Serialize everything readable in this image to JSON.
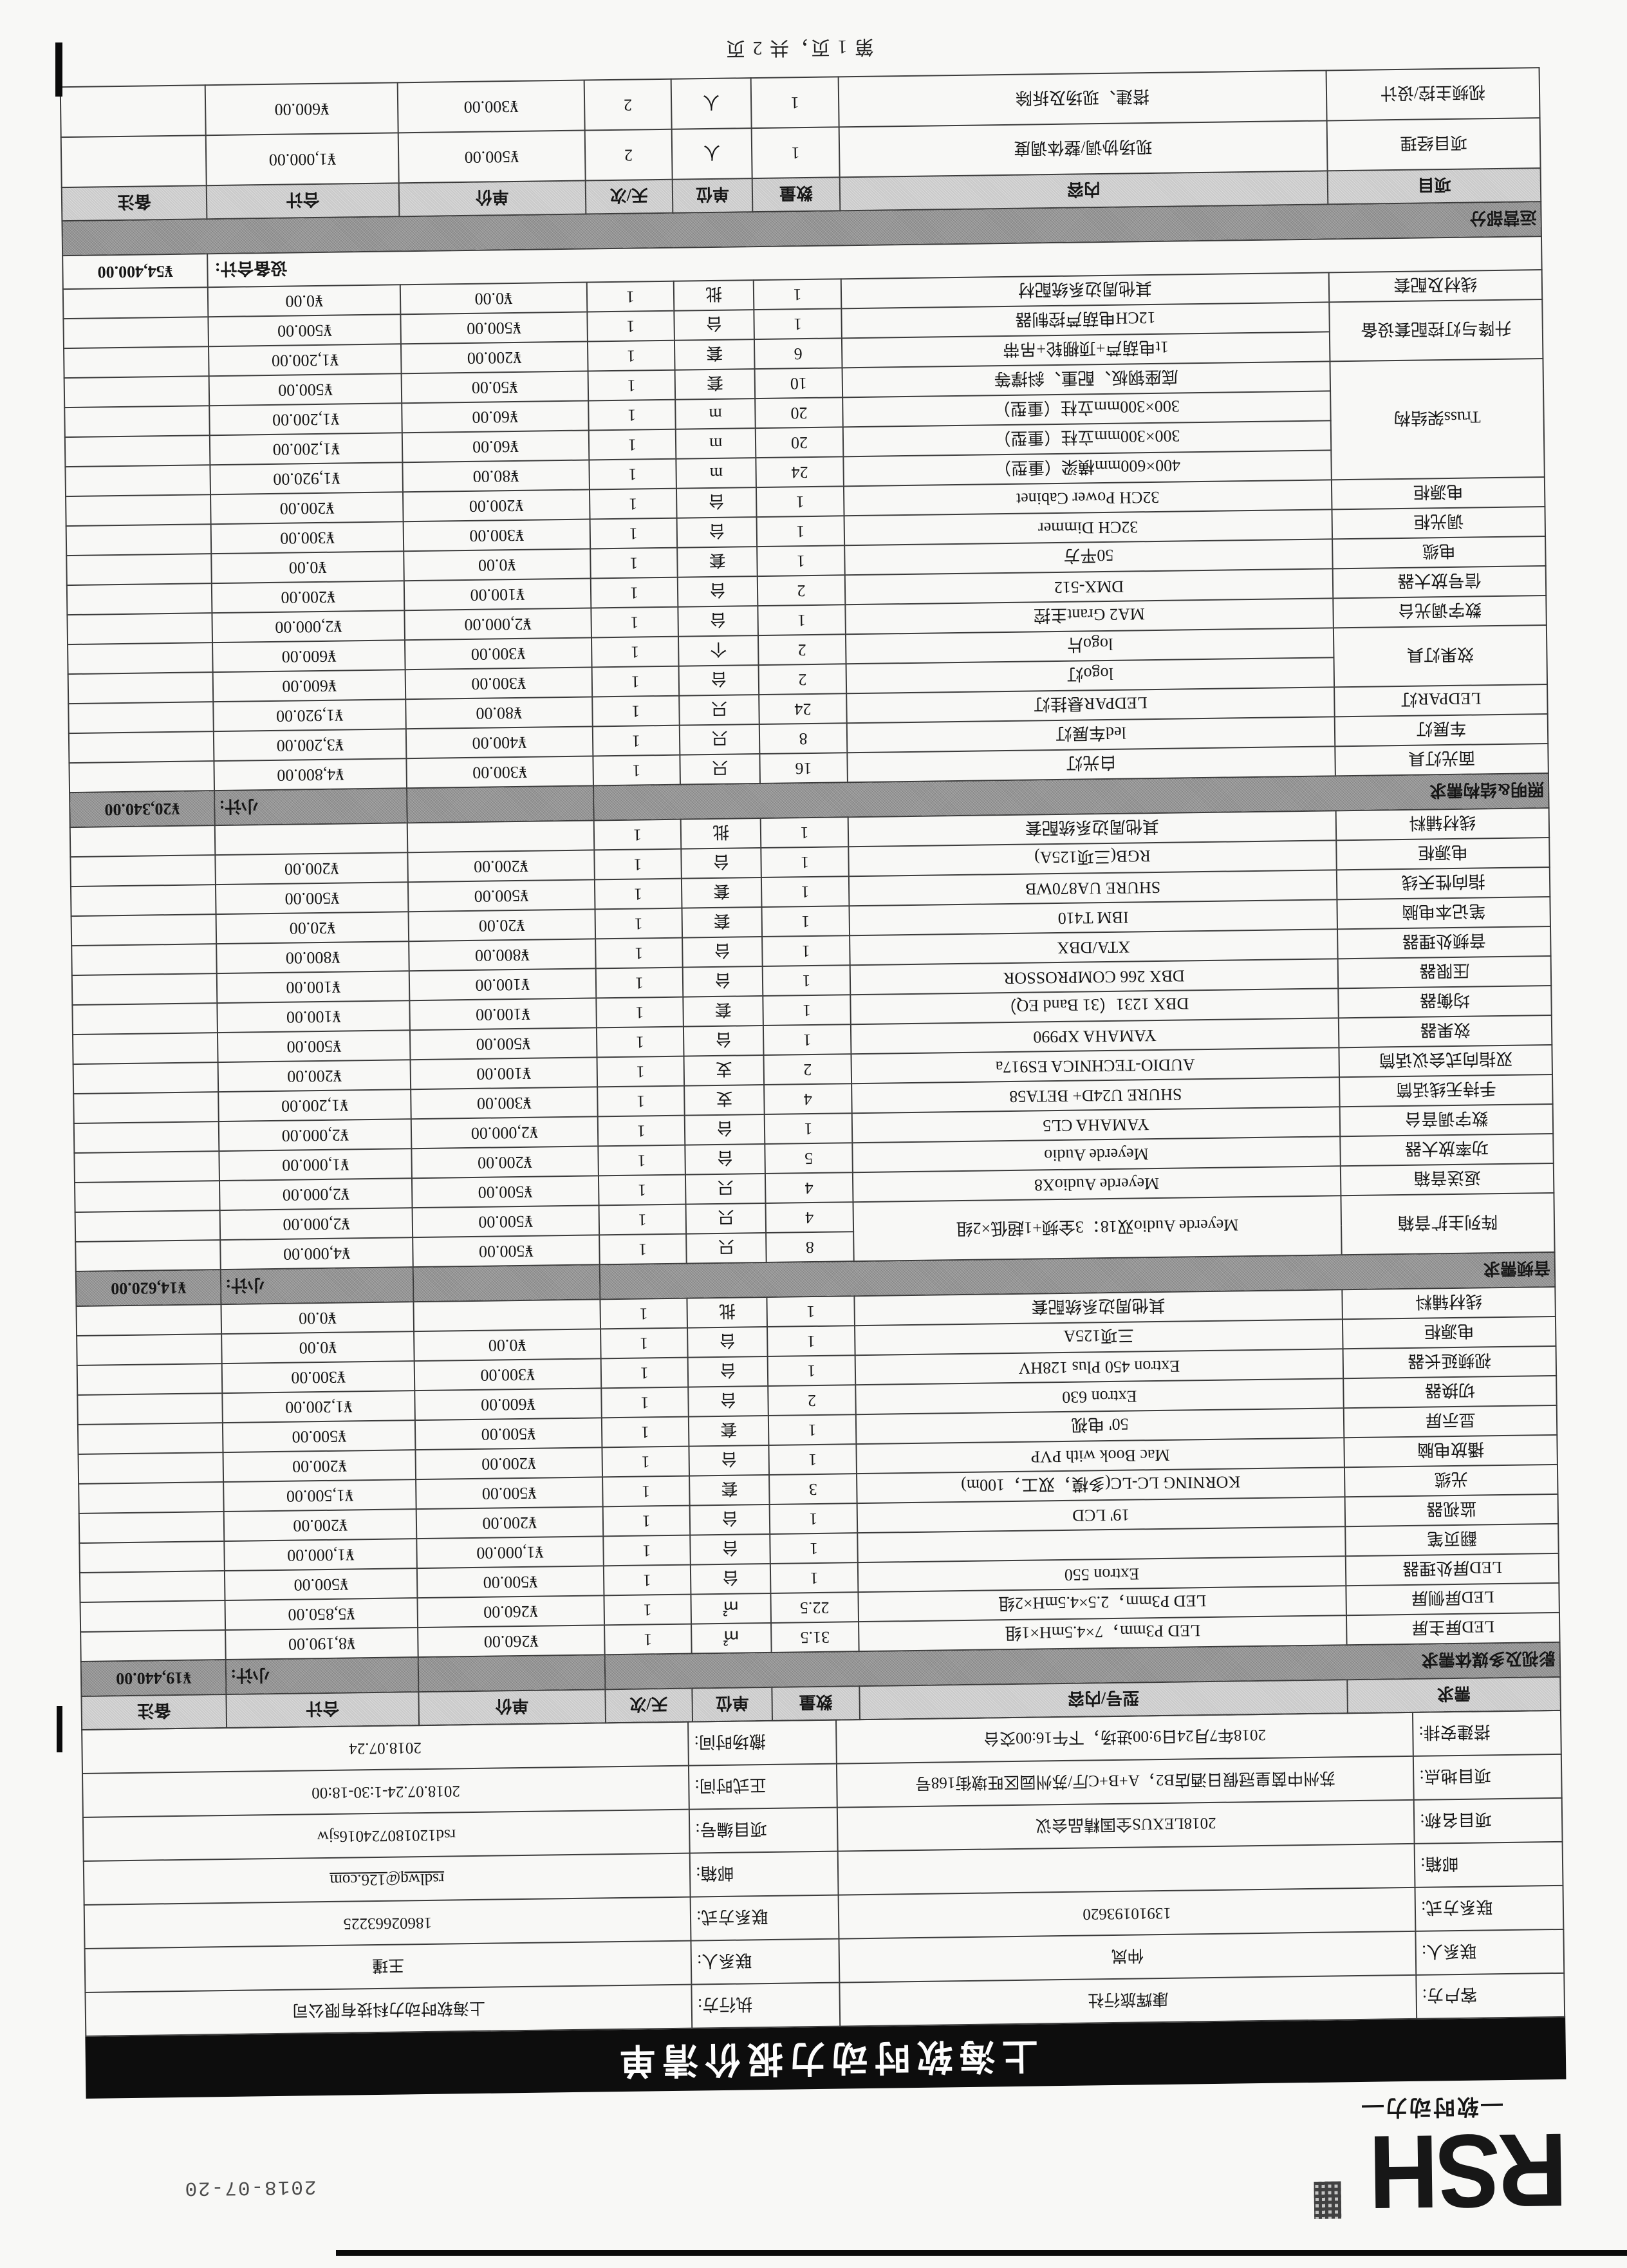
{
  "page": {
    "print_date": "2018-07-20",
    "footer": "第 1 页，共 2 页"
  },
  "brand": {
    "logo": "RSH",
    "logo_sub": "—软时动力—",
    "title": "上海软时动力报价清单",
    "banner_color": "#0d0d0d"
  },
  "info": {
    "rows": [
      {
        "l1": "客户方:",
        "v1": "康辉旅行社",
        "l2": "执行方:",
        "v2": "上海软时动力科技有限公司"
      },
      {
        "l1": "联系人:",
        "v1": "仲岚",
        "l2": "联系人:",
        "v2": "王瑾"
      },
      {
        "l1": "联系方式:",
        "v1": "13910193620",
        "l2": "联系方式:",
        "v2": "18602663225"
      },
      {
        "l1": "邮箱:",
        "v1": "",
        "l2": "邮箱:",
        "v2": "rsdlwq@126.com",
        "v2_underline": true
      },
      {
        "l1": "项目名称:",
        "v1": "2018LEXUS全国精品会议",
        "l2": "项目编号:",
        "v2": "rsd120180724016sjw"
      },
      {
        "l1": "项目地点:",
        "v1": "苏州中茵皇冠假日酒店B2，A+B+C厅/苏州园区旺墩街168号",
        "l2": "正式时间:",
        "v2": "2018.07.24-1:30-18:00"
      },
      {
        "l1": "搭建安排:",
        "v1": "2018年7月24日9:00进场，下午16:00交台",
        "l2": "撤场时间:",
        "v2": "2018.07.24"
      }
    ]
  },
  "equipment": {
    "columns": [
      "需求",
      "型号/内容",
      "数量",
      "单位",
      "天/次",
      "单价",
      "合计",
      "备注"
    ],
    "subtotal_label": "小计:",
    "sections": [
      {
        "name": "影视及多媒体需求",
        "subtotal": "¥19,440.00",
        "rows": [
          {
            "cat": "LED屏主屏",
            "model": "LED P3mm，7×4.5mH×1组",
            "qty": "31.5",
            "unit": "㎡",
            "days": "1",
            "price": "¥260.00",
            "total": "¥8,190.00",
            "note": ""
          },
          {
            "cat": "LED屏侧屏",
            "model": "LED P3mm，2.5×4.5mH×2组",
            "qty": "22.5",
            "unit": "㎡",
            "days": "1",
            "price": "¥260.00",
            "total": "¥5,850.00",
            "note": ""
          },
          {
            "cat": "LED屏处理器",
            "model": "Extron 550",
            "qty": "1",
            "unit": "台",
            "days": "1",
            "price": "¥500.00",
            "total": "¥500.00",
            "note": ""
          },
          {
            "cat": "翻页笔",
            "model": "",
            "qty": "1",
            "unit": "台",
            "days": "1",
            "price": "¥1,000.00",
            "total": "¥1,000.00",
            "note": ""
          },
          {
            "cat": "监视器",
            "model": "19' LCD",
            "qty": "1",
            "unit": "台",
            "days": "1",
            "price": "¥200.00",
            "total": "¥200.00",
            "note": ""
          },
          {
            "cat": "光缆",
            "model": "KORNING LC-LC(多模，双工，100m)",
            "qty": "3",
            "unit": "套",
            "days": "1",
            "price": "¥500.00",
            "total": "¥1,500.00",
            "note": ""
          },
          {
            "cat": "播放电脑",
            "model": "Mac Book with PVP",
            "qty": "1",
            "unit": "台",
            "days": "1",
            "price": "¥200.00",
            "total": "¥200.00",
            "note": ""
          },
          {
            "cat": "显示屏",
            "model": "50' 电视",
            "qty": "1",
            "unit": "套",
            "days": "1",
            "price": "¥500.00",
            "total": "¥500.00",
            "note": ""
          },
          {
            "cat": "切换器",
            "model": "Extron 630",
            "qty": "2",
            "unit": "台",
            "days": "1",
            "price": "¥600.00",
            "total": "¥1,200.00",
            "note": ""
          },
          {
            "cat": "视频延长器",
            "model": "Extron 450 Plus 128HV",
            "qty": "1",
            "unit": "台",
            "days": "1",
            "price": "¥300.00",
            "total": "¥300.00",
            "note": ""
          },
          {
            "cat": "电源柜",
            "model": "三项125A",
            "qty": "1",
            "unit": "台",
            "days": "1",
            "price": "¥0.00",
            "total": "¥0.00",
            "note": ""
          },
          {
            "cat": "线材辅料",
            "model": "其他周边系统配套",
            "qty": "1",
            "unit": "批",
            "days": "1",
            "price": "",
            "total": "¥0.00",
            "note": ""
          }
        ]
      },
      {
        "name": "音频需求",
        "subtotal": "¥14,620.00",
        "rows": [
          {
            "cat": "阵列主扩音箱",
            "catRows": 2,
            "model": "Meyerde Audio双18：3全频+1超低×2组",
            "modelRows": 2,
            "qty": "8",
            "unit": "只",
            "days": "1",
            "price": "¥500.00",
            "total": "¥4,000.00",
            "note": ""
          },
          {
            "cat": null,
            "model": null,
            "qty": "4",
            "unit": "只",
            "days": "1",
            "price": "¥500.00",
            "total": "¥2,000.00",
            "note": ""
          },
          {
            "cat": "返送音箱",
            "model": "Meyerde AudioX8",
            "qty": "4",
            "unit": "只",
            "days": "1",
            "price": "¥500.00",
            "total": "¥2,000.00",
            "note": ""
          },
          {
            "cat": "功率放大器",
            "model": "Meyerde Audio",
            "qty": "5",
            "unit": "台",
            "days": "1",
            "price": "¥200.00",
            "total": "¥1,000.00",
            "note": ""
          },
          {
            "cat": "数字调音台",
            "model": "YAMAHA CL5",
            "qty": "1",
            "unit": "台",
            "days": "1",
            "price": "¥2,000.00",
            "total": "¥2,000.00",
            "note": ""
          },
          {
            "cat": "手持无线话筒",
            "model": "SHURE U24D+ BETA58",
            "qty": "4",
            "unit": "支",
            "days": "1",
            "price": "¥300.00",
            "total": "¥1,200.00",
            "note": ""
          },
          {
            "cat": "双指向式会议话筒",
            "model": "AUDIO-TECHNICA ES917a",
            "qty": "2",
            "unit": "支",
            "days": "1",
            "price": "¥100.00",
            "total": "¥200.00",
            "note": ""
          },
          {
            "cat": "效果器",
            "model": "YAMAHA XP990",
            "qty": "1",
            "unit": "台",
            "days": "1",
            "price": "¥500.00",
            "total": "¥500.00",
            "note": ""
          },
          {
            "cat": "均衡器",
            "model": "DBX 1231（31 Band EQ）",
            "qty": "1",
            "unit": "套",
            "days": "1",
            "price": "¥100.00",
            "total": "¥100.00",
            "note": ""
          },
          {
            "cat": "压限器",
            "model": "DBX 266 COMPROSSOR",
            "qty": "1",
            "unit": "台",
            "days": "1",
            "price": "¥100.00",
            "total": "¥100.00",
            "note": ""
          },
          {
            "cat": "音频处理器",
            "model": "XTA/DBX",
            "qty": "1",
            "unit": "台",
            "days": "1",
            "price": "¥800.00",
            "total": "¥800.00",
            "note": ""
          },
          {
            "cat": "笔记本电脑",
            "model": "IBM T410",
            "qty": "1",
            "unit": "套",
            "days": "1",
            "price": "¥20.00",
            "total": "¥20.00",
            "note": ""
          },
          {
            "cat": "指向性天线",
            "model": "SHURE UA870WB",
            "qty": "1",
            "unit": "套",
            "days": "1",
            "price": "¥500.00",
            "total": "¥500.00",
            "note": ""
          },
          {
            "cat": "电源柜",
            "model": "RGB(三项125A)",
            "qty": "1",
            "unit": "台",
            "days": "1",
            "price": "¥200.00",
            "total": "¥200.00",
            "note": ""
          },
          {
            "cat": "线材辅料",
            "model": "其他周边系统配套",
            "qty": "1",
            "unit": "批",
            "days": "1",
            "price": "",
            "total": "",
            "note": ""
          }
        ]
      },
      {
        "name": "照明&结构需求",
        "subtotal": "¥20,340.00",
        "rows": [
          {
            "cat": "面光灯具",
            "model": "白光灯",
            "qty": "16",
            "unit": "只",
            "days": "1",
            "price": "¥300.00",
            "total": "¥4,800.00",
            "note": ""
          },
          {
            "cat": "车展灯",
            "model": "led车展灯",
            "qty": "8",
            "unit": "只",
            "days": "1",
            "price": "¥400.00",
            "total": "¥3,200.00",
            "note": ""
          },
          {
            "cat": "LEDPAR灯",
            "model": "LEDPAR悬挂灯",
            "qty": "24",
            "unit": "只",
            "days": "1",
            "price": "¥80.00",
            "total": "¥1,920.00",
            "note": ""
          },
          {
            "cat": "效果灯具",
            "catRows": 2,
            "model": "logo灯",
            "qty": "2",
            "unit": "台",
            "days": "1",
            "price": "¥300.00",
            "total": "¥600.00",
            "note": ""
          },
          {
            "cat": null,
            "model": "logo片",
            "qty": "2",
            "unit": "个",
            "days": "1",
            "price": "¥300.00",
            "total": "¥600.00",
            "note": ""
          },
          {
            "cat": "数字调光台",
            "model": "MA2 Grant主控",
            "qty": "1",
            "unit": "台",
            "days": "1",
            "price": "¥2,000.00",
            "total": "¥2,000.00",
            "note": ""
          },
          {
            "cat": "信号放大器",
            "model": "DMX-512",
            "qty": "2",
            "unit": "台",
            "days": "1",
            "price": "¥100.00",
            "total": "¥200.00",
            "note": ""
          },
          {
            "cat": "电缆",
            "model": "50平方",
            "qty": "1",
            "unit": "套",
            "days": "1",
            "price": "¥0.00",
            "total": "¥0.00",
            "note": ""
          },
          {
            "cat": "调光柜",
            "model": "32CH Dimmer",
            "qty": "1",
            "unit": "台",
            "days": "1",
            "price": "¥300.00",
            "total": "¥300.00",
            "note": ""
          },
          {
            "cat": "电源柜",
            "model": "32CH Power Cabinet",
            "qty": "1",
            "unit": "台",
            "days": "1",
            "price": "¥200.00",
            "total": "¥200.00",
            "note": ""
          },
          {
            "cat": "Truss架结构",
            "catRows": 4,
            "model": "400×600mm横梁（重型）",
            "qty": "24",
            "unit": "m",
            "days": "1",
            "price": "¥80.00",
            "total": "¥1,920.00",
            "note": ""
          },
          {
            "cat": null,
            "model": "300×300mm立柱（重型）",
            "qty": "20",
            "unit": "m",
            "days": "1",
            "price": "¥60.00",
            "total": "¥1,200.00",
            "note": ""
          },
          {
            "cat": null,
            "model": "300×300mm立柱（重型）",
            "qty": "20",
            "unit": "m",
            "days": "1",
            "price": "¥60.00",
            "total": "¥1,200.00",
            "note": ""
          },
          {
            "cat": null,
            "model": "底座钢板、配重、斜撑等",
            "qty": "10",
            "unit": "套",
            "days": "1",
            "price": "¥50.00",
            "total": "¥500.00",
            "note": ""
          },
          {
            "cat": "升降与灯控配套设备",
            "catRows": 2,
            "model": "1t电葫芦+顶棚轮+吊带",
            "qty": "6",
            "unit": "套",
            "days": "1",
            "price": "¥200.00",
            "total": "¥1,200.00",
            "note": ""
          },
          {
            "cat": null,
            "model": "12CH电葫芦控制器",
            "qty": "1",
            "unit": "台",
            "days": "1",
            "price": "¥500.00",
            "total": "¥500.00",
            "note": ""
          },
          {
            "cat": "线材及配套",
            "model": "其他周边系统配材",
            "qty": "1",
            "unit": "批",
            "days": "1",
            "price": "¥0.00",
            "total": "¥0.00",
            "note": ""
          }
        ]
      }
    ],
    "total_label": "设备合计:",
    "total_value": "¥54,400.00"
  },
  "operations": {
    "banner": "运营部分",
    "columns": [
      "项目",
      "内容",
      "数量",
      "单位",
      "天/次",
      "单价",
      "合计",
      "备注"
    ],
    "rows": [
      {
        "cat": "项目经理",
        "model": "现场协调/整体调度",
        "qty": "1",
        "unit": "人",
        "days": "2",
        "price": "¥500.00",
        "total": "¥1,000.00",
        "note": ""
      },
      {
        "cat": "视频主控/设计",
        "model": "搭建、现场及拆除",
        "qty": "1",
        "unit": "人",
        "days": "2",
        "price": "¥300.00",
        "total": "¥600.00",
        "note": ""
      }
    ]
  }
}
